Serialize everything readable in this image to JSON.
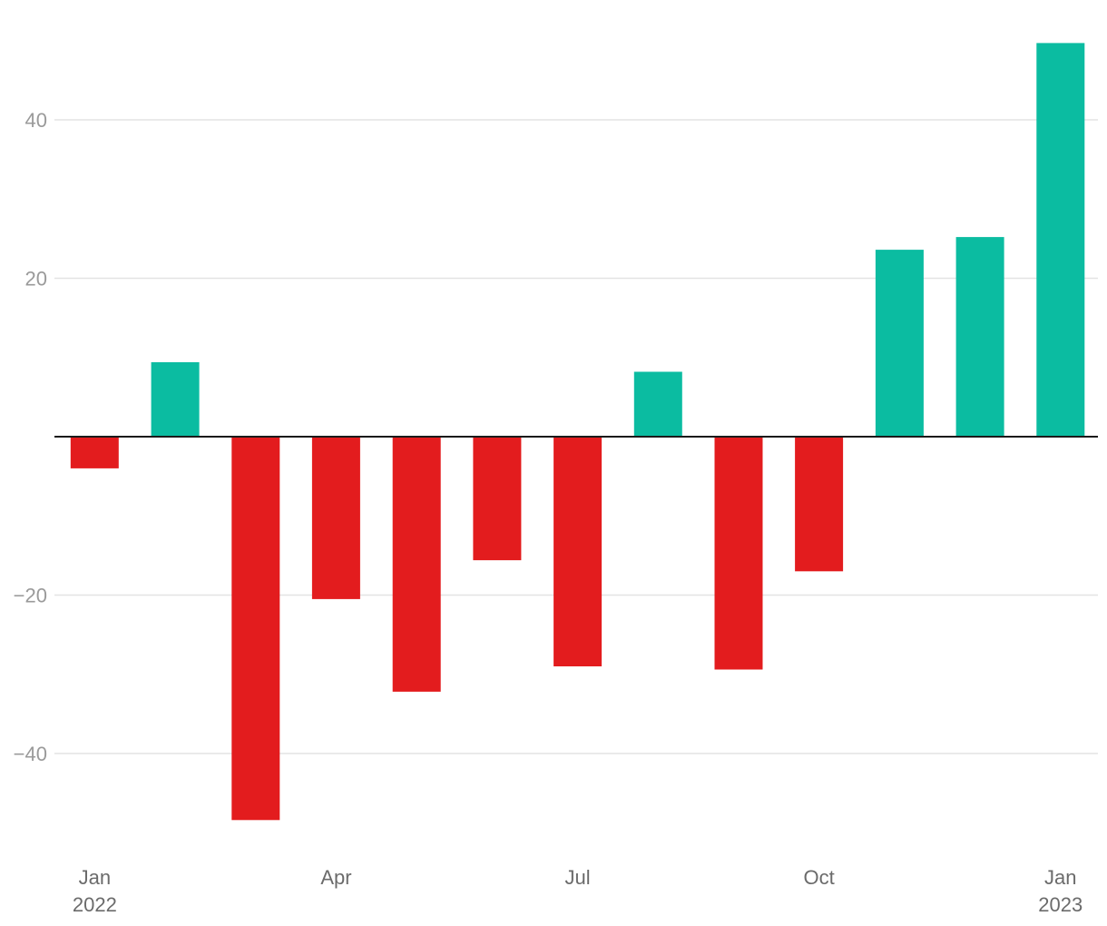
{
  "chart_data": {
    "type": "bar",
    "categories": [
      "2022-01",
      "2022-02",
      "2022-03",
      "2022-04",
      "2022-05",
      "2022-06",
      "2022-07",
      "2022-08",
      "2022-09",
      "2022-10",
      "2022-11",
      "2022-12",
      "2023-01"
    ],
    "values": [
      -4,
      9.4,
      -48.4,
      -20.5,
      -32.2,
      -15.6,
      -29,
      8.2,
      -29.4,
      -17,
      23.6,
      25.2,
      49.7
    ],
    "positive_color": "#0bbca1",
    "negative_color": "#e31c1e",
    "ylim": [
      -53,
      55
    ],
    "y_ticks": [
      40,
      20,
      -20,
      -40
    ],
    "y_tick_labels": [
      "40",
      "20",
      "−20",
      "−40"
    ],
    "x_ticks": [
      {
        "category": "2022-01",
        "line1": "Jan",
        "line2": "2022"
      },
      {
        "category": "2022-04",
        "line1": "Apr",
        "line2": ""
      },
      {
        "category": "2022-07",
        "line1": "Jul",
        "line2": ""
      },
      {
        "category": "2022-10",
        "line1": "Oct",
        "line2": ""
      },
      {
        "category": "2023-01",
        "line1": "Jan",
        "line2": "2023"
      }
    ],
    "grid": true,
    "legend": "none",
    "title": "",
    "xlabel": "",
    "ylabel": ""
  }
}
